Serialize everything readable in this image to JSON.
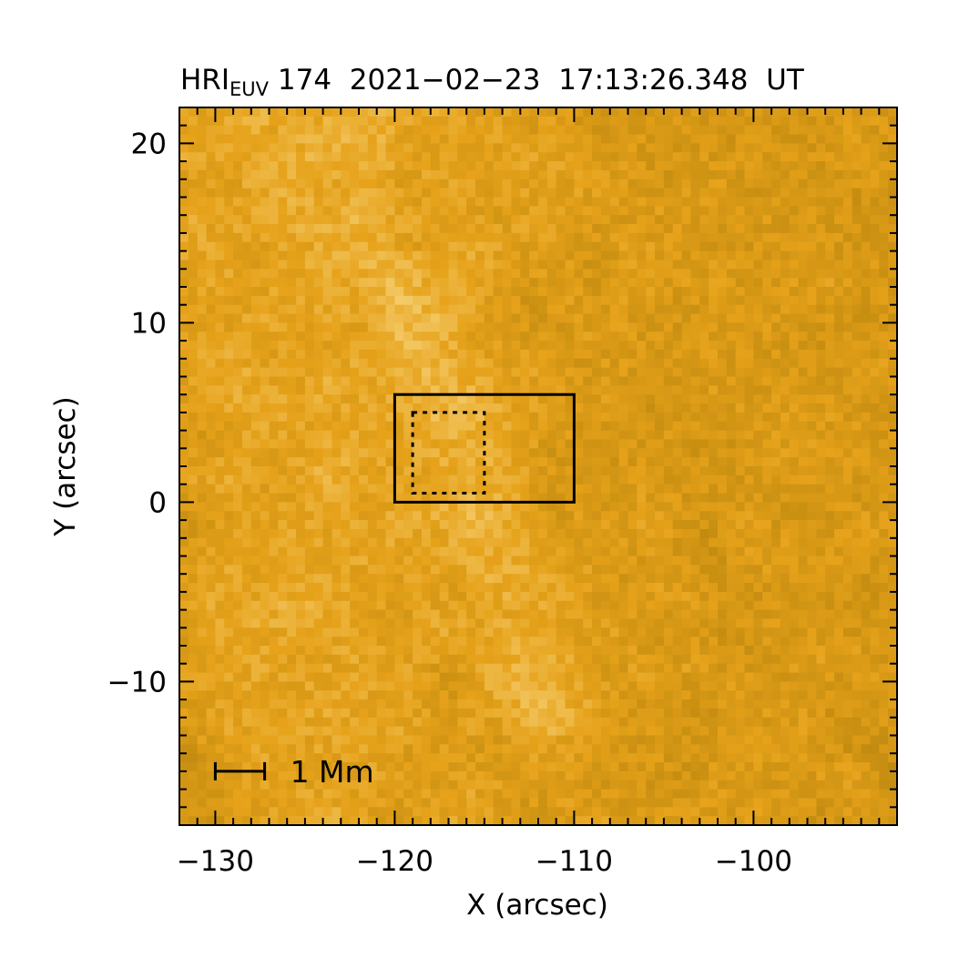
{
  "figure": {
    "title": {
      "instrument": "HRI",
      "instrument_subscript": "EUV",
      "rest": " 174  2021−02−23  17:13:26.348  UT"
    },
    "x_axis": {
      "label": "X (arcsec)",
      "range": [
        -132,
        -92
      ],
      "major_ticks": [
        -130,
        -120,
        -110,
        -100
      ],
      "tick_labels": [
        "−130",
        "−120",
        "−110",
        "−100"
      ],
      "minor_step": 1
    },
    "y_axis": {
      "label": "Y (arcsec)",
      "range": [
        -18,
        22
      ],
      "major_ticks": [
        -10,
        0,
        10,
        20
      ],
      "tick_labels": [
        "−10",
        "0",
        "10",
        "20"
      ],
      "minor_step": 1
    },
    "solid_box": {
      "x": [
        -120,
        -110
      ],
      "y": [
        0,
        6
      ]
    },
    "dotted_box": {
      "x": [
        -119,
        -115
      ],
      "y": [
        0.5,
        5
      ]
    },
    "scale_bar": {
      "label": "1 Mm",
      "length_arcsec": 2.75
    },
    "colors": {
      "colormap_dark": "#a87a08",
      "colormap_mid": "#e6a21a",
      "colormap_bright": "#ffeaa6",
      "axes": "#000000"
    }
  }
}
